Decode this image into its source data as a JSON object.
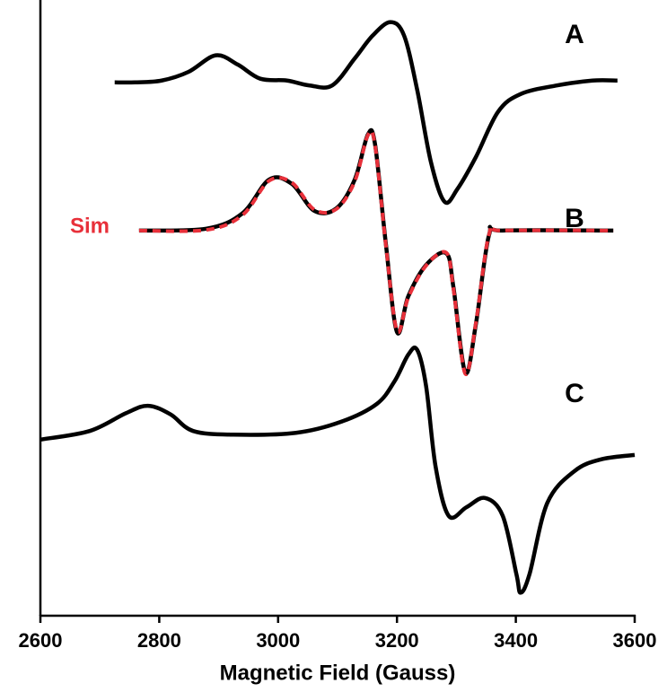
{
  "chart_data": {
    "type": "line",
    "x_label": "Magnetic Field (Gauss)",
    "xlim": [
      2600,
      3600
    ],
    "xticks": [
      2600,
      2800,
      3000,
      3200,
      3400,
      3600
    ],
    "ylim": [
      0,
      100
    ],
    "series": [
      {
        "name": "A",
        "color": "#000000",
        "dashed": false,
        "x": [
          2725,
          2759,
          2804,
          2849,
          2895,
          2932,
          2970,
          3015,
          3053,
          3091,
          3129,
          3159,
          3189,
          3212,
          3234,
          3257,
          3280,
          3302,
          3333,
          3370,
          3408,
          3469,
          3529,
          3571
        ],
        "values": [
          86.6,
          86.6,
          86.9,
          88.3,
          91.0,
          89.5,
          87.2,
          86.9,
          86.1,
          86.1,
          90.5,
          94.2,
          96.4,
          94.2,
          85.4,
          73.7,
          67.2,
          69.3,
          74.5,
          81.8,
          84.7,
          86.1,
          86.9,
          86.9
        ]
      },
      {
        "name": "B",
        "color": "#000000",
        "dashed": false,
        "x": [
          2766,
          2879,
          2940,
          2985,
          3023,
          3061,
          3098,
          3129,
          3151,
          3163,
          3181,
          3200,
          3219,
          3249,
          3283,
          3295,
          3315,
          3333,
          3355,
          3378,
          3564
        ],
        "values": [
          62.5,
          62.8,
          65.3,
          70.8,
          70.1,
          65.7,
          66.1,
          70.8,
          78.1,
          76.6,
          60.6,
          46.0,
          51.8,
          56.9,
          58.8,
          53.3,
          39.4,
          47.4,
          61.8,
          62.5,
          62.5
        ]
      },
      {
        "name": "Sim",
        "color": "#e8303a",
        "dashed": true,
        "x": [
          2766,
          2879,
          2940,
          2985,
          3023,
          3061,
          3098,
          3129,
          3151,
          3163,
          3181,
          3200,
          3219,
          3249,
          3283,
          3295,
          3315,
          3333,
          3355,
          3378,
          3564
        ],
        "values": [
          62.5,
          62.6,
          65.0,
          70.6,
          70.3,
          65.9,
          66.0,
          70.5,
          78.0,
          76.4,
          60.4,
          46.2,
          51.6,
          56.8,
          58.9,
          53.0,
          39.2,
          47.6,
          61.9,
          62.5,
          62.5
        ]
      },
      {
        "name": "C",
        "color": "#000000",
        "dashed": false,
        "x": [
          2600,
          2683,
          2744,
          2781,
          2819,
          2857,
          2925,
          3030,
          3106,
          3166,
          3196,
          3219,
          3234,
          3249,
          3265,
          3287,
          3317,
          3348,
          3378,
          3401,
          3408,
          3423,
          3453,
          3499,
          3544,
          3600
        ],
        "values": [
          28.5,
          29.9,
          32.8,
          34.0,
          32.6,
          29.9,
          29.3,
          29.6,
          31.4,
          34.3,
          38.0,
          42.3,
          43.1,
          37.2,
          24.1,
          16.1,
          17.5,
          19.0,
          16.1,
          6.6,
          3.6,
          6.6,
          18.2,
          23.4,
          25.3,
          26.0
        ]
      }
    ]
  }
}
